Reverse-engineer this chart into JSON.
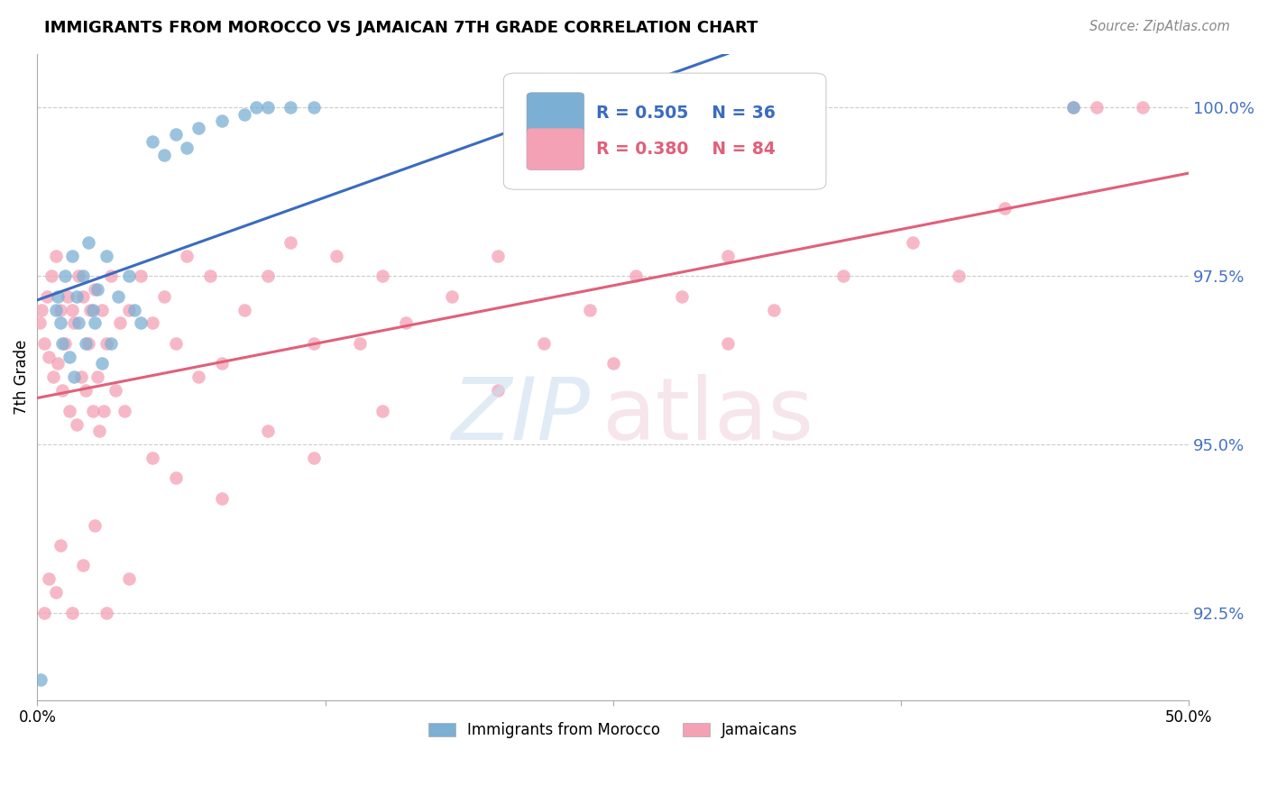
{
  "title": "IMMIGRANTS FROM MOROCCO VS JAMAICAN 7TH GRADE CORRELATION CHART",
  "source": "Source: ZipAtlas.com",
  "ylabel": "7th Grade",
  "yticks": [
    92.5,
    95.0,
    97.5,
    100.0
  ],
  "ytick_color": "#4472c4",
  "xmin": 0.0,
  "xmax": 50.0,
  "ymin": 91.2,
  "ymax": 100.8,
  "morocco_R": 0.505,
  "morocco_N": 36,
  "jamaican_R": 0.38,
  "jamaican_N": 84,
  "legend_morocco_label": "Immigrants from Morocco",
  "legend_jamaican_label": "Jamaicans",
  "morocco_color": "#7bafd4",
  "jamaican_color": "#f4a0b5",
  "morocco_line_color": "#3a6bbf",
  "jamaican_line_color": "#e0607a",
  "morocco_x": [
    0.15,
    0.8,
    0.9,
    1.0,
    1.1,
    1.2,
    1.4,
    1.5,
    1.6,
    1.7,
    1.8,
    2.0,
    2.1,
    2.2,
    2.4,
    2.5,
    2.6,
    2.8,
    3.0,
    3.2,
    3.5,
    4.0,
    4.2,
    4.5,
    5.0,
    5.5,
    6.0,
    6.5,
    7.0,
    8.0,
    9.0,
    9.5,
    10.0,
    11.0,
    12.0,
    45.0
  ],
  "morocco_y": [
    91.5,
    97.0,
    97.2,
    96.8,
    96.5,
    97.5,
    96.3,
    97.8,
    96.0,
    97.2,
    96.8,
    97.5,
    96.5,
    98.0,
    97.0,
    96.8,
    97.3,
    96.2,
    97.8,
    96.5,
    97.2,
    97.5,
    97.0,
    96.8,
    99.5,
    99.3,
    99.6,
    99.4,
    99.7,
    99.8,
    99.9,
    100.0,
    100.0,
    100.0,
    100.0,
    100.0
  ],
  "jamaican_x": [
    0.1,
    0.2,
    0.3,
    0.4,
    0.5,
    0.6,
    0.7,
    0.8,
    0.9,
    1.0,
    1.1,
    1.2,
    1.3,
    1.4,
    1.5,
    1.6,
    1.7,
    1.8,
    1.9,
    2.0,
    2.1,
    2.2,
    2.3,
    2.4,
    2.5,
    2.6,
    2.7,
    2.8,
    2.9,
    3.0,
    3.2,
    3.4,
    3.6,
    3.8,
    4.0,
    4.5,
    5.0,
    5.5,
    6.0,
    6.5,
    7.0,
    7.5,
    8.0,
    9.0,
    10.0,
    11.0,
    12.0,
    13.0,
    14.0,
    15.0,
    16.0,
    18.0,
    20.0,
    22.0,
    24.0,
    26.0,
    28.0,
    30.0,
    32.0,
    35.0,
    38.0,
    40.0,
    42.0,
    45.0,
    46.0,
    48.0,
    0.3,
    0.5,
    0.8,
    1.0,
    1.5,
    2.0,
    2.5,
    3.0,
    4.0,
    5.0,
    6.0,
    8.0,
    10.0,
    12.0,
    15.0,
    20.0,
    25.0,
    30.0
  ],
  "jamaican_y": [
    96.8,
    97.0,
    96.5,
    97.2,
    96.3,
    97.5,
    96.0,
    97.8,
    96.2,
    97.0,
    95.8,
    96.5,
    97.2,
    95.5,
    97.0,
    96.8,
    95.3,
    97.5,
    96.0,
    97.2,
    95.8,
    96.5,
    97.0,
    95.5,
    97.3,
    96.0,
    95.2,
    97.0,
    95.5,
    96.5,
    97.5,
    95.8,
    96.8,
    95.5,
    97.0,
    97.5,
    96.8,
    97.2,
    96.5,
    97.8,
    96.0,
    97.5,
    96.2,
    97.0,
    97.5,
    98.0,
    96.5,
    97.8,
    96.5,
    97.5,
    96.8,
    97.2,
    97.8,
    96.5,
    97.0,
    97.5,
    97.2,
    97.8,
    97.0,
    97.5,
    98.0,
    97.5,
    98.5,
    100.0,
    100.0,
    100.0,
    92.5,
    93.0,
    92.8,
    93.5,
    92.5,
    93.2,
    93.8,
    92.5,
    93.0,
    94.8,
    94.5,
    94.2,
    95.2,
    94.8,
    95.5,
    95.8,
    96.2,
    96.5
  ]
}
